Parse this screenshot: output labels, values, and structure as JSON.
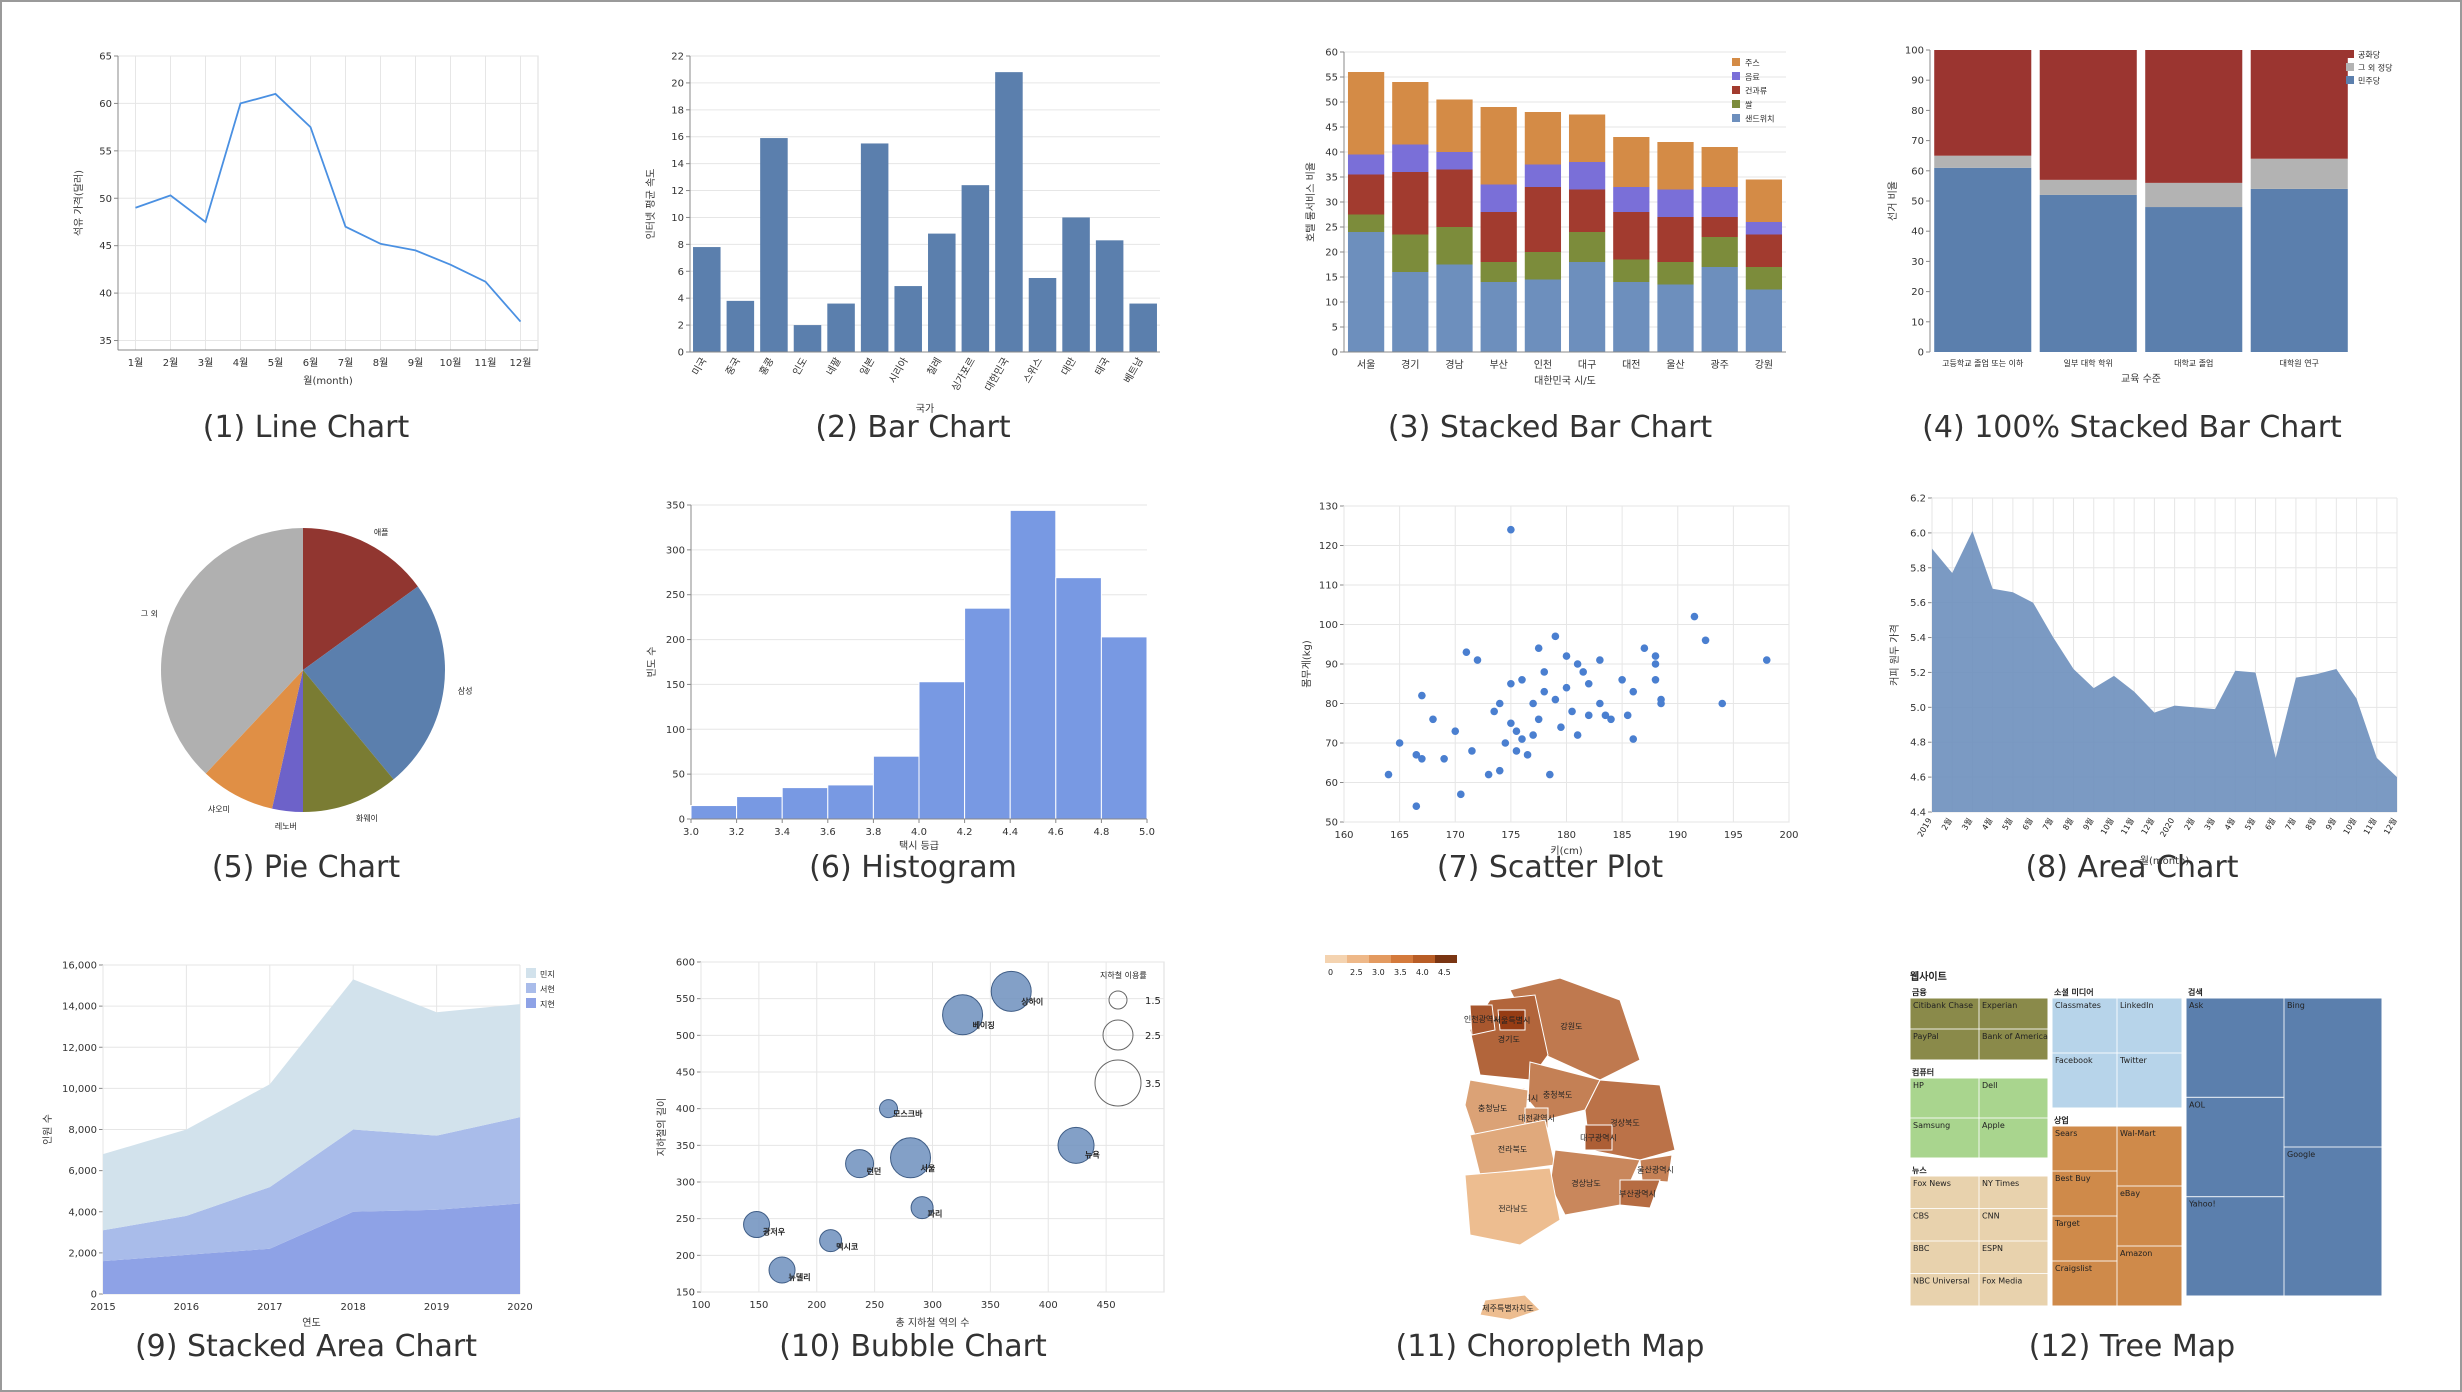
{
  "charts": [
    {
      "id": "line",
      "caption": "(1) Line Chart",
      "chart_data": {
        "type": "line",
        "xlabel": "월(month)",
        "ylabel": "석유 가격(달러)",
        "ylim": [
          34,
          65
        ],
        "categories": [
          "1월",
          "2월",
          "3월",
          "4월",
          "5월",
          "6월",
          "7월",
          "8월",
          "9월",
          "10월",
          "11월",
          "12월"
        ],
        "values": [
          49,
          50.3,
          47.5,
          60,
          61,
          57.5,
          47,
          45.2,
          44.5,
          43,
          41.2,
          37
        ],
        "yticks": [
          35,
          40,
          45,
          50,
          55,
          60,
          65
        ],
        "color": "#4a90e2"
      }
    },
    {
      "id": "bar",
      "caption": "(2) Bar Chart",
      "chart_data": {
        "type": "bar",
        "xlabel": "국가",
        "ylabel": "인터넷 평균 속도",
        "ylim": [
          0,
          22
        ],
        "categories": [
          "미국",
          "중국",
          "홍콩",
          "인도",
          "네팔",
          "일본",
          "시리아",
          "칠레",
          "싱가포르",
          "대한민국",
          "스위스",
          "대만",
          "태국",
          "베트남"
        ],
        "values": [
          7.8,
          3.8,
          15.9,
          2,
          3.6,
          15.5,
          4.9,
          8.8,
          12.4,
          20.8,
          5.5,
          10,
          8.3,
          3.6
        ],
        "yticks": [
          0,
          2,
          4,
          6,
          8,
          10,
          12,
          14,
          16,
          18,
          20,
          22
        ],
        "color": "#5b7fad"
      }
    },
    {
      "id": "stacked",
      "caption": "(3) Stacked Bar Chart",
      "chart_data": {
        "type": "bar",
        "stacked": true,
        "xlabel": "대한민국 시/도",
        "ylabel": "호텔 룸서비스 비율",
        "ylim": [
          0,
          60
        ],
        "yticks": [
          0,
          5,
          10,
          15,
          20,
          25,
          30,
          35,
          40,
          45,
          50,
          55,
          60
        ],
        "categories": [
          "서울",
          "경기",
          "경남",
          "부산",
          "인천",
          "대구",
          "대전",
          "울산",
          "광주",
          "강원"
        ],
        "series": [
          {
            "name": "샌드위치",
            "color": "#6d8fbd",
            "values": [
              24,
              16,
              17.5,
              14,
              14.5,
              18,
              14,
              13.5,
              17,
              12.5
            ]
          },
          {
            "name": "쌀",
            "color": "#7c8c3b",
            "values": [
              3.5,
              7.5,
              7.5,
              4,
              5.5,
              6,
              4.5,
              4.5,
              6,
              4.5
            ]
          },
          {
            "name": "건과류",
            "color": "#a23b2f",
            "values": [
              8,
              12.5,
              11.5,
              10,
              13,
              8.5,
              9.5,
              9,
              4,
              6.5
            ]
          },
          {
            "name": "음료",
            "color": "#7a6fd8",
            "values": [
              4,
              5.5,
              3.5,
              5.5,
              4.5,
              5.5,
              5,
              5.5,
              6,
              2.5
            ]
          },
          {
            "name": "주스",
            "color": "#d48b46",
            "values": [
              16.5,
              12.5,
              10.5,
              15.5,
              10.5,
              9.5,
              10,
              9.5,
              8,
              8.5
            ]
          }
        ]
      }
    },
    {
      "id": "stacked100",
      "caption": "(4) 100% Stacked Bar Chart",
      "chart_data": {
        "type": "bar",
        "stacked": true,
        "normalized": true,
        "xlabel": "교육 수준",
        "ylabel": "선거 비율",
        "ylim": [
          0,
          100
        ],
        "yticks": [
          0,
          10,
          20,
          30,
          40,
          50,
          60,
          70,
          80,
          90,
          100
        ],
        "categories": [
          "고등학교 졸업 또는 이하",
          "일부 대학 학위",
          "대학교 졸업",
          "대학원 연구"
        ],
        "series": [
          {
            "name": "민주당",
            "color": "#5b7fad",
            "values": [
              61,
              52,
              48,
              54
            ]
          },
          {
            "name": "그 외 정당",
            "color": "#b3b3b3",
            "values": [
              4,
              5,
              8,
              10
            ]
          },
          {
            "name": "공화당",
            "color": "#9b3530",
            "values": [
              35,
              43,
              44,
              36
            ]
          }
        ]
      }
    },
    {
      "id": "pie",
      "caption": "(5) Pie Chart",
      "chart_data": {
        "type": "pie",
        "slices": [
          {
            "name": "애플",
            "value": 15,
            "color": "#913630"
          },
          {
            "name": "삼성",
            "value": 24,
            "color": "#5b7fad"
          },
          {
            "name": "화웨이",
            "value": 11,
            "color": "#7a7c33"
          },
          {
            "name": "레노버",
            "value": 3.5,
            "color": "#6d62c9"
          },
          {
            "name": "샤오미",
            "value": 8.5,
            "color": "#e08f45"
          },
          {
            "name": "그 외",
            "value": 38,
            "color": "#b0b0b0"
          }
        ]
      }
    },
    {
      "id": "hist",
      "caption": "(6) Histogram",
      "chart_data": {
        "type": "bar",
        "histogram": true,
        "xlabel": "택시 등급",
        "ylabel": "빈도 수",
        "ylim": [
          0,
          350
        ],
        "yticks": [
          0,
          50,
          100,
          150,
          200,
          250,
          300,
          350
        ],
        "xticks": [
          "3.0",
          "3.2",
          "3.4",
          "3.6",
          "3.8",
          "4.0",
          "4.2",
          "4.4",
          "4.6",
          "4.8",
          "5.0"
        ],
        "bins": [
          [
            3.0,
            3.2
          ],
          [
            3.2,
            3.4
          ],
          [
            3.4,
            3.6
          ],
          [
            3.6,
            3.8
          ],
          [
            3.8,
            4.0
          ],
          [
            4.0,
            4.2
          ],
          [
            4.2,
            4.4
          ],
          [
            4.4,
            4.6
          ],
          [
            4.6,
            4.8
          ],
          [
            4.8,
            5.0
          ]
        ],
        "values": [
          15,
          25,
          35,
          38,
          70,
          153,
          235,
          344,
          269,
          203
        ],
        "color": "#7899e3"
      }
    },
    {
      "id": "scatter",
      "caption": "(7) Scatter Plot",
      "chart_data": {
        "type": "scatter",
        "xlabel": "키(cm)",
        "ylabel": "몸무게(kg)",
        "xlim": [
          160,
          200
        ],
        "ylim": [
          50,
          130
        ],
        "xticks": [
          160,
          165,
          170,
          175,
          180,
          185,
          190,
          195,
          200
        ],
        "yticks": [
          50,
          60,
          70,
          80,
          90,
          100,
          110,
          120,
          130
        ],
        "color": "#4a7fd0",
        "points": [
          [
            164,
            62
          ],
          [
            165,
            70
          ],
          [
            166.5,
            54
          ],
          [
            166.5,
            67
          ],
          [
            167,
            82
          ],
          [
            167,
            66
          ],
          [
            168,
            76
          ],
          [
            169,
            66
          ],
          [
            170,
            73
          ],
          [
            170.5,
            57
          ],
          [
            171,
            93
          ],
          [
            171.5,
            68
          ],
          [
            172,
            91
          ],
          [
            173,
            62
          ],
          [
            173.5,
            78
          ],
          [
            174,
            80
          ],
          [
            174,
            63
          ],
          [
            174.5,
            70
          ],
          [
            175,
            124
          ],
          [
            175,
            85
          ],
          [
            175,
            75
          ],
          [
            175.5,
            73
          ],
          [
            175.5,
            68
          ],
          [
            176,
            86
          ],
          [
            176,
            71
          ],
          [
            176.5,
            67
          ],
          [
            177,
            80
          ],
          [
            177,
            72
          ],
          [
            177.5,
            94
          ],
          [
            177.5,
            76
          ],
          [
            178,
            83
          ],
          [
            178,
            88
          ],
          [
            178.5,
            62
          ],
          [
            179,
            97
          ],
          [
            179,
            81
          ],
          [
            179.5,
            74
          ],
          [
            180,
            92
          ],
          [
            180,
            84
          ],
          [
            180.5,
            78
          ],
          [
            181,
            90
          ],
          [
            181,
            72
          ],
          [
            181.5,
            88
          ],
          [
            182,
            77
          ],
          [
            182,
            85
          ],
          [
            183,
            80
          ],
          [
            183,
            91
          ],
          [
            183.5,
            77
          ],
          [
            184,
            76
          ],
          [
            185,
            86
          ],
          [
            185.5,
            77
          ],
          [
            186,
            83
          ],
          [
            186,
            71
          ],
          [
            187,
            94
          ],
          [
            188,
            92
          ],
          [
            188,
            90
          ],
          [
            188,
            86
          ],
          [
            188.5,
            81
          ],
          [
            188.5,
            80
          ],
          [
            191.5,
            102
          ],
          [
            192.5,
            96
          ],
          [
            194,
            80
          ],
          [
            198,
            91
          ]
        ]
      }
    },
    {
      "id": "area",
      "caption": "(8) Area Chart",
      "chart_data": {
        "type": "area",
        "xlabel": "월(month)",
        "ylabel": "커피 원두 가격",
        "ylim": [
          4.4,
          6.2
        ],
        "yticks": [
          4.4,
          4.6,
          4.8,
          5.0,
          5.2,
          5.4,
          5.6,
          5.8,
          6.0,
          6.2
        ],
        "categories": [
          "2019",
          "2월",
          "3월",
          "4월",
          "5월",
          "6월",
          "7월",
          "8월",
          "9월",
          "10월",
          "11월",
          "12월",
          "2020",
          "2월",
          "3월",
          "4월",
          "5월",
          "6월",
          "7월",
          "8월",
          "9월",
          "10월",
          "11월",
          "12월"
        ],
        "values": [
          5.91,
          5.77,
          6.01,
          5.68,
          5.66,
          5.6,
          5.4,
          5.22,
          5.11,
          5.18,
          5.09,
          4.97,
          5.01,
          5.0,
          4.99,
          5.21,
          5.2,
          4.71,
          5.17,
          5.19,
          5.22,
          5.05,
          4.71,
          4.6
        ],
        "color": "#6d8fbd"
      }
    },
    {
      "id": "stackedarea",
      "caption": "(9) Stacked Area Chart",
      "chart_data": {
        "type": "area",
        "stacked": true,
        "xlabel": "연도",
        "ylabel": "인원 수",
        "ylim": [
          0,
          16000
        ],
        "yticks": [
          0,
          2000,
          4000,
          6000,
          8000,
          10000,
          12000,
          14000,
          16000
        ],
        "yticklabels": [
          "0",
          "2,000",
          "4,000",
          "6,000",
          "8,000",
          "10,000",
          "12,000",
          "14,000",
          "16,000"
        ],
        "categories": [
          "2015",
          "2016",
          "2017",
          "2018",
          "2019",
          "2020"
        ],
        "series": [
          {
            "name": "지현",
            "color": "#8ea2e6",
            "values": [
              1600,
              1900,
              2200,
              4000,
              4100,
              4400
            ]
          },
          {
            "name": "서현",
            "color": "#a9bcea",
            "values": [
              1500,
              1900,
              3000,
              4000,
              3600,
              4200
            ]
          },
          {
            "name": "민지",
            "color": "#d2e2ec",
            "values": [
              3700,
              4200,
              5000,
              7300,
              6000,
              5500
            ]
          }
        ]
      }
    },
    {
      "id": "bubble",
      "caption": "(10) Bubble Chart",
      "chart_data": {
        "type": "scatter",
        "bubble": true,
        "xlabel": "총 지하철 역의 수",
        "ylabel": "지하철의 길이",
        "xlim": [
          100,
          500
        ],
        "ylim": [
          150,
          600
        ],
        "xticks": [
          100,
          150,
          200,
          250,
          300,
          350,
          400,
          450
        ],
        "yticks": [
          150,
          200,
          250,
          300,
          350,
          400,
          450,
          500,
          550,
          600
        ],
        "legend_title": "지하철 이용률",
        "legend_sizes": [
          "1.5",
          "2.5",
          "3.5"
        ],
        "color": "#6d8fbd",
        "points": [
          {
            "name": "상하이",
            "x": 368,
            "y": 560,
            "r": 20
          },
          {
            "name": "베이징",
            "x": 326,
            "y": 528,
            "r": 20
          },
          {
            "name": "모스크바",
            "x": 262,
            "y": 400,
            "r": 9
          },
          {
            "name": "서울",
            "x": 281,
            "y": 333,
            "r": 20
          },
          {
            "name": "런던",
            "x": 237,
            "y": 325,
            "r": 14
          },
          {
            "name": "뉴욕",
            "x": 424,
            "y": 350,
            "r": 18
          },
          {
            "name": "파리",
            "x": 291,
            "y": 265,
            "r": 11
          },
          {
            "name": "광저우",
            "x": 148,
            "y": 242,
            "r": 13
          },
          {
            "name": "멕시코",
            "x": 212,
            "y": 220,
            "r": 11
          },
          {
            "name": "뉴델리",
            "x": 170,
            "y": 180,
            "r": 13
          }
        ]
      }
    },
    {
      "id": "choropleth",
      "caption": "(11) Choropleth  Map",
      "chart_data": {
        "type": "heatmap",
        "map": true,
        "legend_ticks": [
          "0",
          "2.5",
          "3.0",
          "3.5",
          "4.0",
          "4.5"
        ],
        "regions": [
          {
            "name": "강원도",
            "value": 3.6
          },
          {
            "name": "경기도",
            "value": 3.9
          },
          {
            "name": "서울특별시",
            "value": 4.5
          },
          {
            "name": "인천광역시",
            "value": 4.1
          },
          {
            "name": "충청북도",
            "value": 3.5
          },
          {
            "name": "세종특별자치시",
            "value": 2.6
          },
          {
            "name": "충청남도",
            "value": 3.0
          },
          {
            "name": "대전광역시",
            "value": 3.2
          },
          {
            "name": "경상북도",
            "value": 3.7
          },
          {
            "name": "대구광역시",
            "value": 4.0
          },
          {
            "name": "전라북도",
            "value": 2.9
          },
          {
            "name": "경상남도",
            "value": 3.4
          },
          {
            "name": "울산광역시",
            "value": 3.5
          },
          {
            "name": "부산광역시",
            "value": 3.8
          },
          {
            "name": "광주광역시",
            "value": 2.7
          },
          {
            "name": "전라남도",
            "value": 2.6
          },
          {
            "name": "제주특별자치도",
            "value": 2.6
          }
        ]
      }
    },
    {
      "id": "treemap",
      "caption": "(12) Tree  Map",
      "chart_data": {
        "type": "heatmap",
        "treemap": true,
        "title": "웹사이트",
        "groups": [
          {
            "name": "금융",
            "color": "#8a8a4a",
            "items": [
              "Citibank Chase",
              "PayPal",
              "Experian",
              "Bank of America"
            ]
          },
          {
            "name": "컴퓨터",
            "color": "#a9d58e",
            "items": [
              "HP",
              "Samsung",
              "Dell",
              "Apple"
            ]
          },
          {
            "name": "뉴스",
            "color": "#e8d2ad",
            "items": [
              "Fox News",
              "CBS",
              "BBC",
              "NBC Universal",
              "NY Times",
              "CNN",
              "ESPN",
              "Fox Media"
            ]
          },
          {
            "name": "소셜 미디어",
            "color": "#b7d4ea",
            "items": [
              "Classmates",
              "Facebook",
              "LinkedIn",
              "Twitter"
            ]
          },
          {
            "name": "상업",
            "color": "#cf8a4a",
            "items": [
              "Sears",
              "Best Buy",
              "Target",
              "Craigslist",
              "Wal-Mart",
              "eBay",
              "Amazon"
            ]
          },
          {
            "name": "검색",
            "color": "#5b7fad",
            "items": [
              "Ask",
              "AOL",
              "Yahoo!",
              "Bing",
              "Google"
            ]
          }
        ]
      }
    }
  ]
}
